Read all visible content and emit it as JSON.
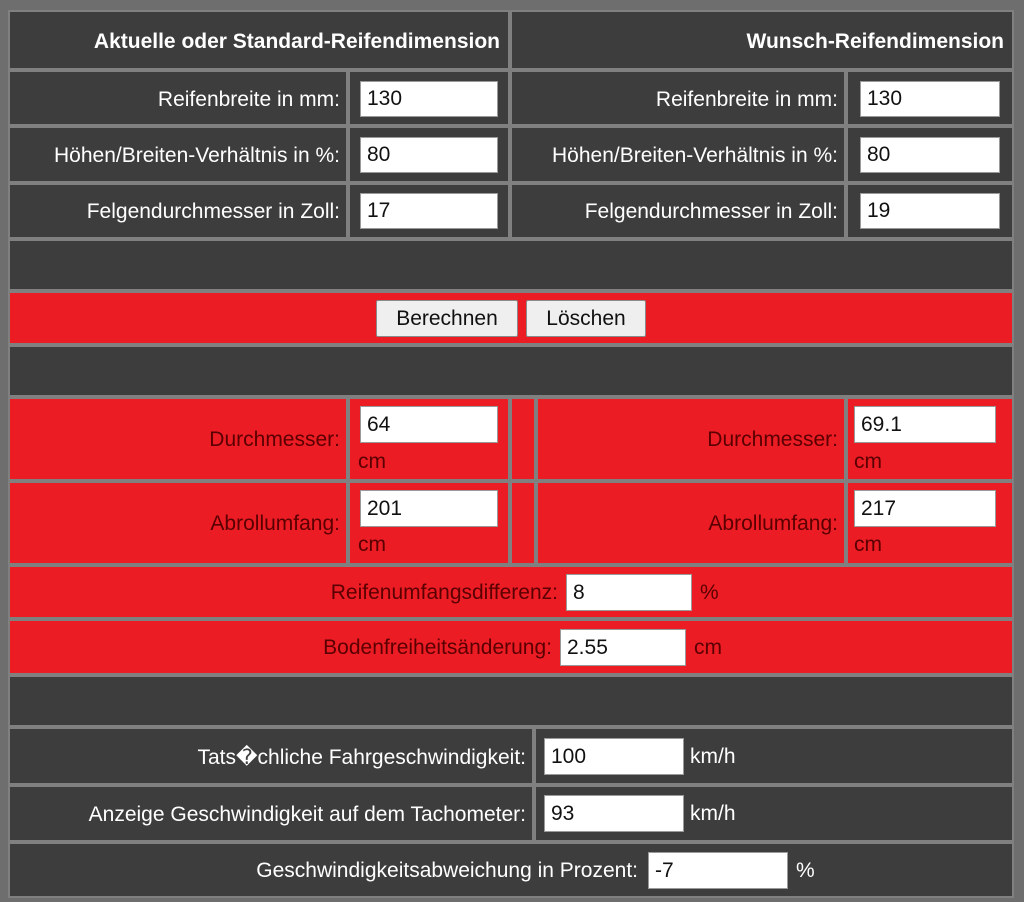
{
  "header": {
    "left_title": "Aktuelle oder Standard-Reifendimension",
    "right_title": "Wunsch-Reifendimension"
  },
  "current": {
    "width_label": "Reifenbreite in mm:",
    "width_value": "130",
    "ratio_label": "Höhen/Breiten-Verhältnis in %:",
    "ratio_value": "80",
    "rim_label": "Felgendurchmesser in Zoll:",
    "rim_value": "17"
  },
  "desired": {
    "width_label": "Reifenbreite in mm:",
    "width_value": "130",
    "ratio_label": "Höhen/Breiten-Verhältnis in %:",
    "ratio_value": "80",
    "rim_label": "Felgendurchmesser in Zoll:",
    "rim_value": "19"
  },
  "actions": {
    "calculate_label": "Berechnen",
    "clear_label": "Löschen"
  },
  "results": {
    "diameter_label": "Durchmesser:",
    "current_diameter": "64",
    "desired_diameter": "69.1",
    "circumference_label": "Abrollumfang:",
    "current_circumference": "201",
    "desired_circumference": "217",
    "unit_cm": "cm",
    "difference_label": "Reifenumfangsdifferenz:",
    "difference_value": "8",
    "difference_unit": "%",
    "clearance_label": "Bodenfreiheitsänderung:",
    "clearance_value": "2.55",
    "clearance_unit": "cm"
  },
  "speed": {
    "actual_label": "Tats�chliche Fahrgeschwindigkeit:",
    "actual_value": "100",
    "tacho_label": "Anzeige Geschwindigkeit auf dem Tachometer:",
    "tacho_value": "93",
    "unit": "km/h",
    "deviation_label": "Geschwindigkeitsabweichung in Prozent:",
    "deviation_value": "-7",
    "deviation_unit": "%"
  },
  "colors": {
    "dark_cell": "#3d3d3d",
    "grid": "#808080",
    "highlight_red": "#ec1c24",
    "label_dark_red": "#5a0000"
  }
}
